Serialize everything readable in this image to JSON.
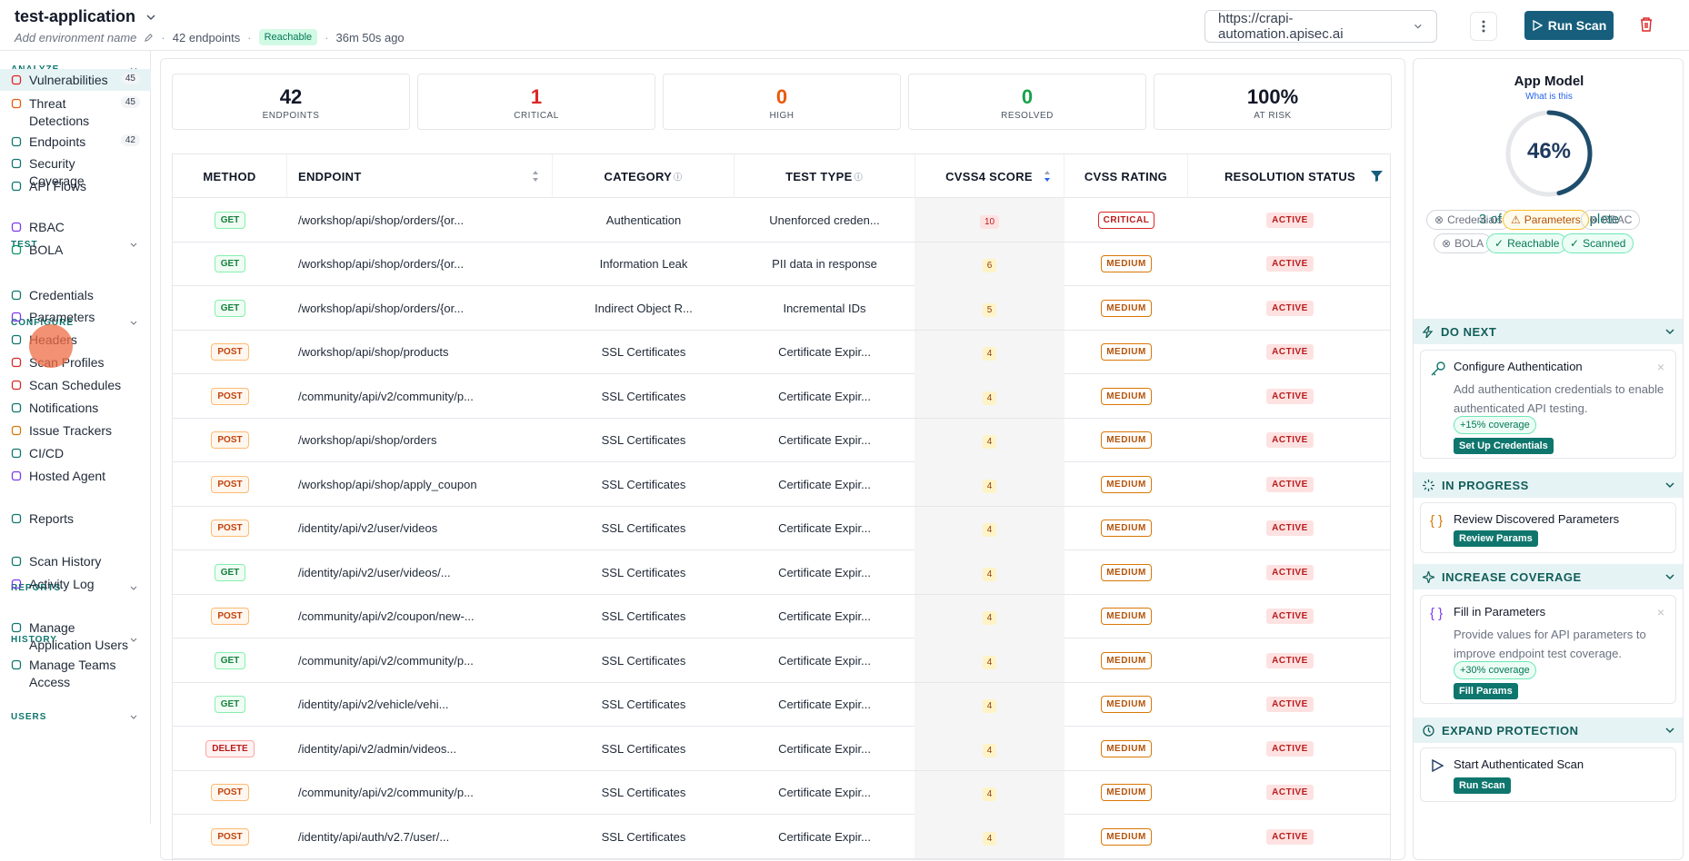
{
  "header": {
    "app_name": "test-application",
    "env_placeholder": "Add environment name",
    "endpoints_count": "42 endpoints",
    "reach_badge": "Reachable",
    "last_scan": "36m 50s ago",
    "url": "https://crapi-automation.apisec.ai",
    "run_scan_label": "Run Scan"
  },
  "sidebar": {
    "sections": {
      "analyze": "ANALYZE",
      "test": "TEST",
      "configure": "CONFIGURE",
      "reports": "REPORTS",
      "history": "HISTORY",
      "users": "USERS"
    },
    "items": [
      {
        "label": "Vulnerabilities",
        "count": "45",
        "icon": "shield-alert-icon",
        "color": "#dc2626"
      },
      {
        "label": "Threat Detections",
        "count": "45",
        "icon": "radar-icon",
        "color": "#ea580c"
      },
      {
        "label": "Endpoints",
        "count": "42",
        "icon": "sliders-icon",
        "color": "#0f766e"
      },
      {
        "label": "Security Coverage",
        "icon": "shield-icon",
        "color": "#0f766e"
      },
      {
        "label": "API Flows",
        "icon": "flow-icon",
        "color": "#0f766e"
      },
      {
        "label": "RBAC",
        "icon": "users-icon",
        "color": "#7c3aed"
      },
      {
        "label": "BOLA",
        "icon": "shield-check-icon",
        "color": "#059669"
      },
      {
        "label": "Credentials",
        "icon": "key-icon",
        "color": "#0f766e"
      },
      {
        "label": "Parameters",
        "icon": "braces-icon",
        "color": "#7c3aed"
      },
      {
        "label": "Headers",
        "icon": "table-icon",
        "color": "#0f766e"
      },
      {
        "label": "Scan Profiles",
        "icon": "gauge-icon",
        "color": "#dc2626"
      },
      {
        "label": "Scan Schedules",
        "icon": "calendar-icon",
        "color": "#dc2626"
      },
      {
        "label": "Notifications",
        "icon": "bell-icon",
        "color": "#0f766e"
      },
      {
        "label": "Issue Trackers",
        "icon": "ticket-icon",
        "color": "#d97706"
      },
      {
        "label": "CI/CD",
        "icon": "pipeline-icon",
        "color": "#0f766e"
      },
      {
        "label": "Hosted Agent",
        "icon": "agent-icon",
        "color": "#7c3aed"
      },
      {
        "label": "Reports",
        "icon": "document-icon",
        "color": "#0f766e"
      },
      {
        "label": "Scan History",
        "icon": "history-icon",
        "color": "#0f766e"
      },
      {
        "label": "Activity Log",
        "icon": "log-icon",
        "color": "#7c3aed"
      },
      {
        "label": "Manage Application Users",
        "icon": "user-icon",
        "color": "#0f766e"
      },
      {
        "label": "Manage Teams Access",
        "icon": "team-icon",
        "color": "#0f766e"
      }
    ]
  },
  "stats": [
    {
      "value": "42",
      "label": "ENDPOINTS",
      "color": "#111827"
    },
    {
      "value": "1",
      "label": "CRITICAL",
      "color": "#dc2626"
    },
    {
      "value": "0",
      "label": "HIGH",
      "color": "#ea580c"
    },
    {
      "value": "0",
      "label": "RESOLVED",
      "color": "#16a34a"
    },
    {
      "value": "100%",
      "label": "AT RISK",
      "color": "#111827"
    }
  ],
  "table": {
    "columns": {
      "method": "METHOD",
      "endpoint": "ENDPOINT",
      "category": "CATEGORY",
      "test_type": "TEST TYPE",
      "score": "CVSS4 SCORE",
      "rating": "CVSS RATING",
      "status": "RESOLUTION STATUS"
    },
    "rows": [
      {
        "method": "GET",
        "endpoint": "/workshop/api/shop/orders/{or...",
        "category": "Authentication",
        "test_type": "Unenforced creden...",
        "score": "10",
        "rating": "CRITICAL",
        "status": "ACTIVE"
      },
      {
        "method": "GET",
        "endpoint": "/workshop/api/shop/orders/{or...",
        "category": "Information Leak",
        "test_type": "PII data in response",
        "score": "6",
        "rating": "MEDIUM",
        "status": "ACTIVE"
      },
      {
        "method": "GET",
        "endpoint": "/workshop/api/shop/orders/{or...",
        "category": "Indirect Object R...",
        "test_type": "Incremental IDs",
        "score": "5",
        "rating": "MEDIUM",
        "status": "ACTIVE"
      },
      {
        "method": "POST",
        "endpoint": "/workshop/api/shop/products",
        "category": "SSL Certificates",
        "test_type": "Certificate Expir...",
        "score": "4",
        "rating": "MEDIUM",
        "status": "ACTIVE"
      },
      {
        "method": "POST",
        "endpoint": "/community/api/v2/community/p...",
        "category": "SSL Certificates",
        "test_type": "Certificate Expir...",
        "score": "4",
        "rating": "MEDIUM",
        "status": "ACTIVE"
      },
      {
        "method": "POST",
        "endpoint": "/workshop/api/shop/orders",
        "category": "SSL Certificates",
        "test_type": "Certificate Expir...",
        "score": "4",
        "rating": "MEDIUM",
        "status": "ACTIVE"
      },
      {
        "method": "POST",
        "endpoint": "/workshop/api/shop/apply_coupon",
        "category": "SSL Certificates",
        "test_type": "Certificate Expir...",
        "score": "4",
        "rating": "MEDIUM",
        "status": "ACTIVE"
      },
      {
        "method": "POST",
        "endpoint": "/identity/api/v2/user/videos",
        "category": "SSL Certificates",
        "test_type": "Certificate Expir...",
        "score": "4",
        "rating": "MEDIUM",
        "status": "ACTIVE"
      },
      {
        "method": "GET",
        "endpoint": "/identity/api/v2/user/videos/...",
        "category": "SSL Certificates",
        "test_type": "Certificate Expir...",
        "score": "4",
        "rating": "MEDIUM",
        "status": "ACTIVE"
      },
      {
        "method": "POST",
        "endpoint": "/community/api/v2/coupon/new-...",
        "category": "SSL Certificates",
        "test_type": "Certificate Expir...",
        "score": "4",
        "rating": "MEDIUM",
        "status": "ACTIVE"
      },
      {
        "method": "GET",
        "endpoint": "/community/api/v2/community/p...",
        "category": "SSL Certificates",
        "test_type": "Certificate Expir...",
        "score": "4",
        "rating": "MEDIUM",
        "status": "ACTIVE"
      },
      {
        "method": "GET",
        "endpoint": "/identity/api/v2/vehicle/vehi...",
        "category": "SSL Certificates",
        "test_type": "Certificate Expir...",
        "score": "4",
        "rating": "MEDIUM",
        "status": "ACTIVE"
      },
      {
        "method": "DELETE",
        "endpoint": "/identity/api/v2/admin/videos...",
        "category": "SSL Certificates",
        "test_type": "Certificate Expir...",
        "score": "4",
        "rating": "MEDIUM",
        "status": "ACTIVE"
      },
      {
        "method": "POST",
        "endpoint": "/community/api/v2/community/p...",
        "category": "SSL Certificates",
        "test_type": "Certificate Expir...",
        "score": "4",
        "rating": "MEDIUM",
        "status": "ACTIVE"
      },
      {
        "method": "POST",
        "endpoint": "/identity/api/auth/v2.7/user/...",
        "category": "SSL Certificates",
        "test_type": "Certificate Expir...",
        "score": "4",
        "rating": "MEDIUM",
        "status": "ACTIVE"
      }
    ]
  },
  "panel": {
    "title": "App Model",
    "link": "What is this",
    "percent": "46%",
    "percent_value": 46,
    "actions": "3 of 8 actions complete",
    "chips": [
      {
        "label": "Credentials",
        "state": "todo"
      },
      {
        "label": "Parameters",
        "state": "warn"
      },
      {
        "label": "RBAC",
        "state": "todo"
      },
      {
        "label": "BOLA",
        "state": "todo"
      },
      {
        "label": "Reachable",
        "state": "ok"
      },
      {
        "label": "Scanned",
        "state": "ok"
      }
    ],
    "groups": {
      "do_next": "DO NEXT",
      "in_progress": "IN PROGRESS",
      "increase_coverage": "INCREASE COVERAGE",
      "expand_protection": "EXPAND PROTECTION"
    },
    "cards": {
      "auth": {
        "title": "Configure Authentication",
        "desc": "Add authentication credentials to enable authenticated API testing.",
        "pill": "+15% coverage",
        "button": "Set Up Credentials"
      },
      "params_review": {
        "title": "Review Discovered Parameters",
        "button": "Review Params"
      },
      "fill": {
        "title": "Fill in Parameters",
        "desc": "Provide values for API parameters to improve endpoint test coverage.",
        "pill": "+30% coverage",
        "button": "Fill Params"
      },
      "scan": {
        "title": "Start Authenticated Scan",
        "button": "Run Scan"
      }
    }
  }
}
